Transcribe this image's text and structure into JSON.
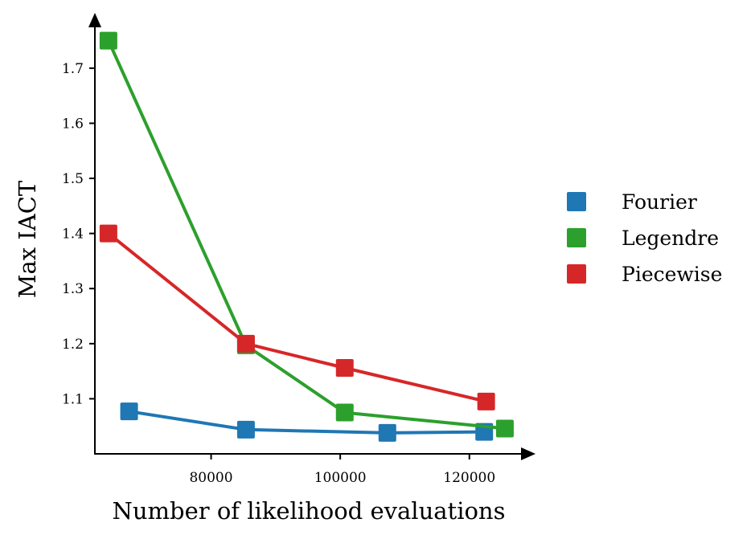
{
  "chart_data": {
    "type": "line",
    "title": "",
    "xlabel": "Number of likelihood evaluations",
    "ylabel": "Max IACT",
    "xlim": [
      62000,
      128500
    ],
    "ylim": [
      1.0,
      1.78
    ],
    "xticks": [
      80000,
      100000,
      120000
    ],
    "xtick_labels": [
      "80000",
      "100000",
      "120000"
    ],
    "yticks": [
      1.1,
      1.2,
      1.3,
      1.4,
      1.5,
      1.6,
      1.7
    ],
    "ytick_labels": [
      "1.1",
      "1.2",
      "1.3",
      "1.4",
      "1.5",
      "1.6",
      "1.7"
    ],
    "grid": false,
    "legend_position": "right",
    "marker": "square",
    "series": [
      {
        "name": "Fourier",
        "color": "#1f77b4",
        "x": [
          67300,
          85400,
          107300,
          122300
        ],
        "y": [
          1.077,
          1.044,
          1.038,
          1.04
        ]
      },
      {
        "name": "Legendre",
        "color": "#2ca02c",
        "x": [
          64100,
          85400,
          100700,
          125500
        ],
        "y": [
          1.75,
          1.197,
          1.075,
          1.046
        ]
      },
      {
        "name": "Piecewise",
        "color": "#d62728",
        "x": [
          64100,
          85400,
          100700,
          122600
        ],
        "y": [
          1.4,
          1.2,
          1.156,
          1.095
        ]
      }
    ]
  }
}
